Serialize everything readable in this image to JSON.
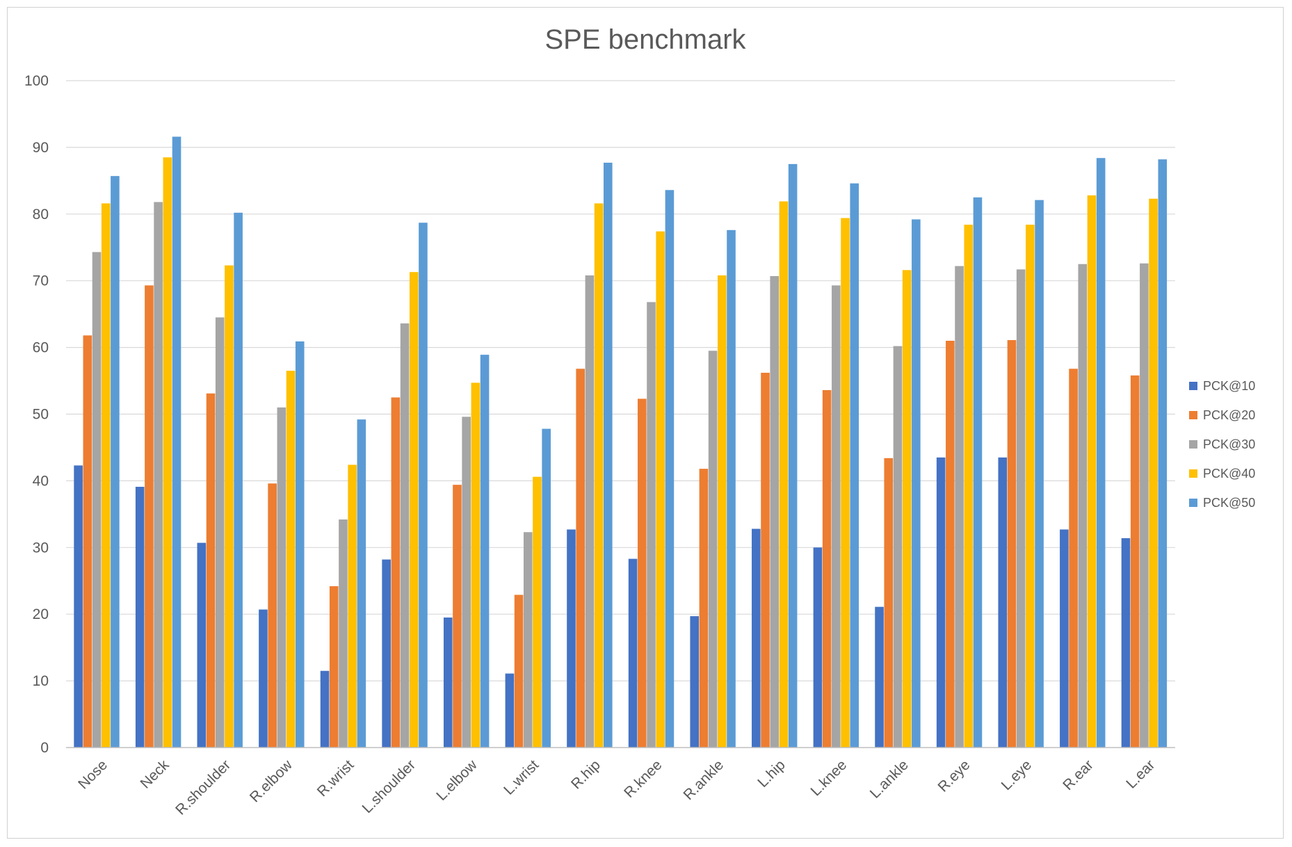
{
  "chart_data": {
    "type": "bar",
    "title": "SPE  benchmark",
    "xlabel": "",
    "ylabel": "",
    "ylim": [
      0,
      100
    ],
    "yticks": [
      "0",
      "10",
      "20",
      "30",
      "40",
      "50",
      "60",
      "70",
      "80",
      "90",
      "100"
    ],
    "grid": true,
    "legend_position": "right",
    "categories": [
      "Nose",
      "Neck",
      "R.shoulder",
      "R.elbow",
      "R.wrist",
      "L.shoulder",
      "L.elbow",
      "L.wrist",
      "R.hip",
      "R.knee",
      "R.ankle",
      "L.hip",
      "L.knee",
      "L.ankle",
      "R.eye",
      "L.eye",
      "R.ear",
      "L.ear"
    ],
    "series": [
      {
        "name": "PCK@10",
        "color": "#4472C4",
        "values": [
          42.3,
          39.1,
          30.7,
          20.7,
          11.5,
          28.2,
          19.5,
          11.1,
          32.7,
          28.3,
          19.7,
          32.8,
          30.0,
          21.1,
          43.5,
          43.5,
          32.7,
          31.4
        ]
      },
      {
        "name": "PCK@20",
        "color": "#ED7D31",
        "values": [
          61.8,
          69.3,
          53.1,
          39.6,
          24.2,
          52.5,
          39.4,
          22.9,
          56.8,
          52.3,
          41.8,
          56.2,
          53.6,
          43.4,
          61.0,
          61.1,
          56.8,
          55.8
        ]
      },
      {
        "name": "PCK@30",
        "color": "#A5A5A5",
        "values": [
          74.3,
          81.8,
          64.5,
          51.0,
          34.2,
          63.6,
          49.6,
          32.3,
          70.8,
          66.8,
          59.5,
          70.7,
          69.3,
          60.2,
          72.2,
          71.7,
          72.5,
          72.6
        ]
      },
      {
        "name": "PCK@40",
        "color": "#FFC000",
        "values": [
          81.6,
          88.5,
          72.3,
          56.5,
          42.4,
          71.3,
          54.7,
          40.6,
          81.6,
          77.4,
          70.8,
          81.9,
          79.4,
          71.6,
          78.4,
          78.4,
          82.8,
          82.3
        ]
      },
      {
        "name": "PCK@50",
        "color": "#5B9BD5",
        "values": [
          85.7,
          91.6,
          80.2,
          60.9,
          49.2,
          78.7,
          58.9,
          47.8,
          87.7,
          83.6,
          77.6,
          87.5,
          84.6,
          79.2,
          82.5,
          82.1,
          88.4,
          88.2
        ]
      }
    ]
  }
}
